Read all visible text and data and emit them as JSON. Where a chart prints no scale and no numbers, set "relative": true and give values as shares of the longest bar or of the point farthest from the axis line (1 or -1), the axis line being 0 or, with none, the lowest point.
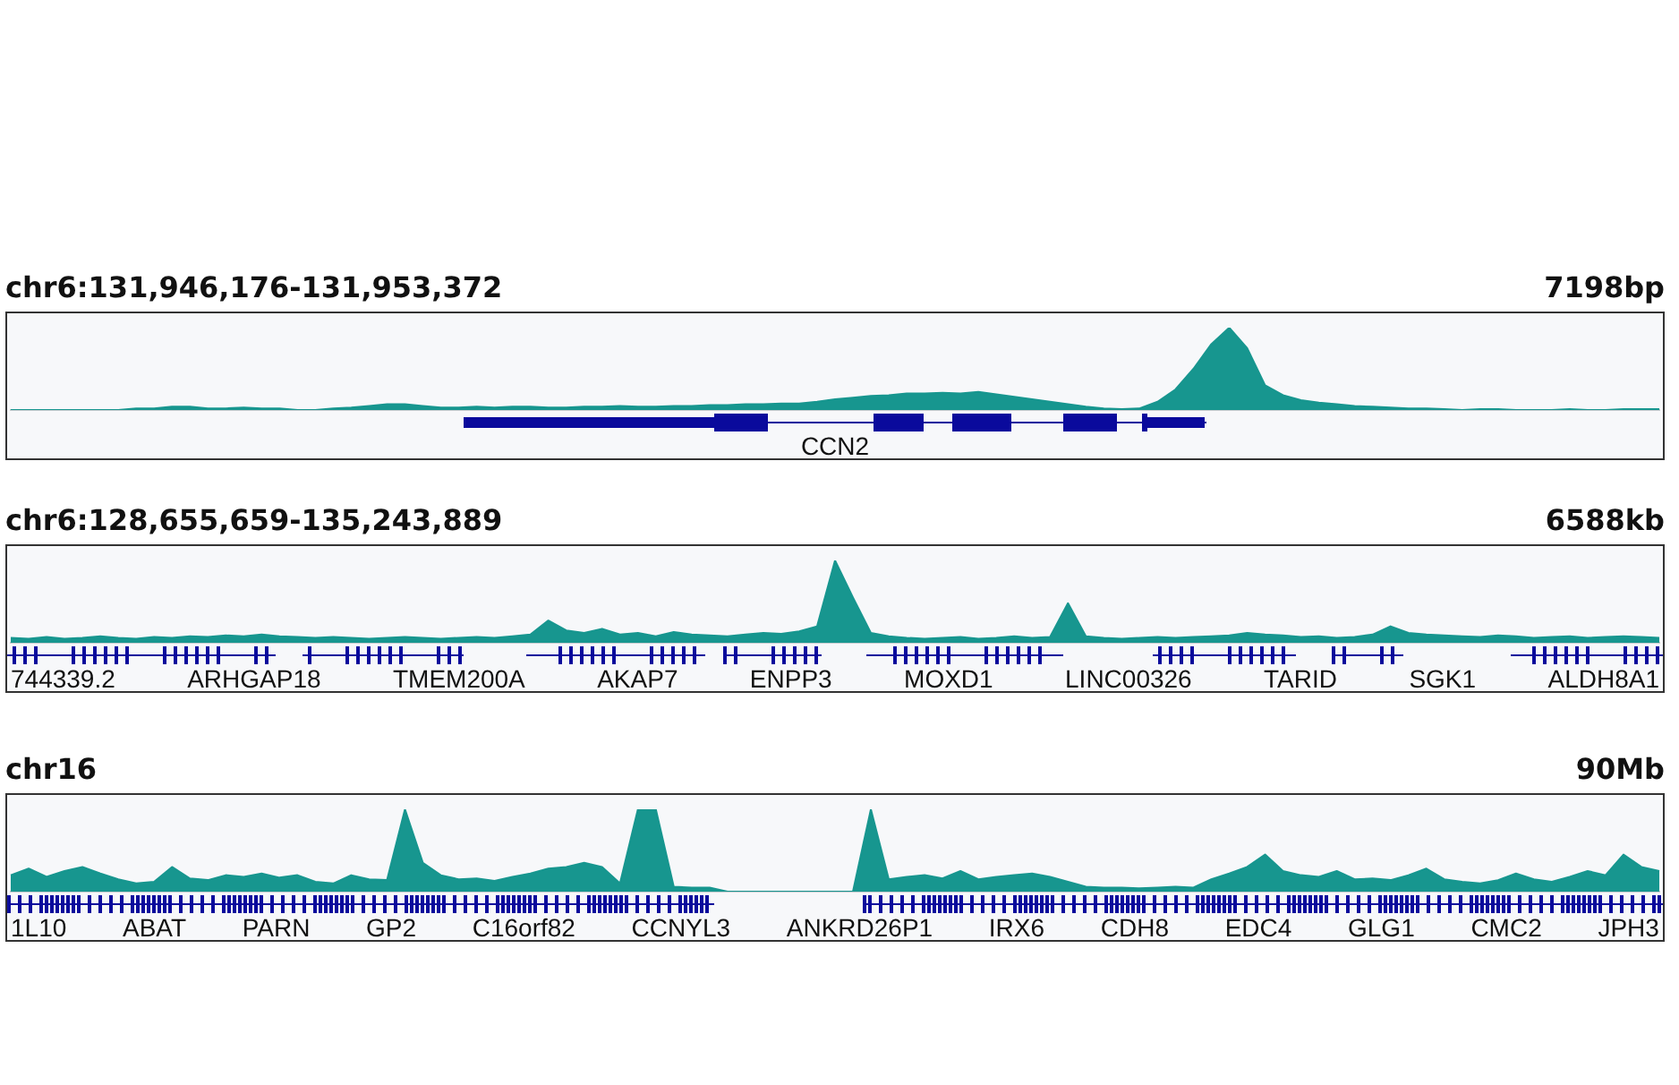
{
  "chart_data": [
    {
      "type": "area",
      "title": "chr6:131,946,176-131,953,372",
      "subtitle": "7198bp",
      "relative": true,
      "categories": [
        null,
        null,
        null,
        null,
        null,
        null,
        null,
        null,
        null,
        null,
        null,
        null,
        null,
        null,
        null,
        null,
        null,
        null,
        null,
        null,
        null,
        null,
        null,
        null,
        null,
        null,
        null,
        null,
        null,
        null,
        null,
        null,
        null,
        null,
        null,
        null,
        null,
        null,
        null,
        null,
        null,
        null,
        null,
        null,
        null,
        null,
        null,
        null,
        null,
        null,
        null,
        null,
        null,
        null,
        null,
        null,
        null,
        null,
        null,
        null,
        null,
        null,
        null,
        null,
        null,
        null,
        null,
        null,
        null,
        null,
        null,
        null,
        null,
        null,
        null,
        null,
        null,
        null,
        null,
        null,
        null,
        null,
        null,
        null,
        null,
        null,
        null,
        null,
        null,
        null,
        null,
        null,
        null
      ],
      "series": [
        {
          "color": "#17968f",
          "values": [
            0,
            0,
            0,
            0,
            0,
            0,
            0,
            0.02,
            0.02,
            0.04,
            0.04,
            0.02,
            0.02,
            0.03,
            0.02,
            0.02,
            0,
            0,
            0.02,
            0.03,
            0.05,
            0.07,
            0.07,
            0.05,
            0.03,
            0.03,
            0.04,
            0.03,
            0.04,
            0.04,
            0.03,
            0.03,
            0.04,
            0.04,
            0.05,
            0.04,
            0.04,
            0.05,
            0.05,
            0.06,
            0.06,
            0.07,
            0.07,
            0.08,
            0.08,
            0.1,
            0.13,
            0.15,
            0.17,
            0.18,
            0.2,
            0.2,
            0.21,
            0.2,
            0.22,
            0.19,
            0.16,
            0.13,
            0.1,
            0.07,
            0.04,
            0.02,
            0.01,
            0.02,
            0.1,
            0.25,
            0.5,
            0.8,
            1,
            0.75,
            0.3,
            0.18,
            0.12,
            0.09,
            0.07,
            0.05,
            0.04,
            0.03,
            0.02,
            0.02,
            0.01,
            0,
            0.01,
            0.01,
            0,
            0,
            0,
            0.01,
            0,
            0,
            0.01,
            0.01,
            0.01
          ]
        }
      ],
      "annotations": [
        "CCN2"
      ]
    },
    {
      "type": "area",
      "title": "chr6:128,655,659-135,243,889",
      "subtitle": "6588kb",
      "relative": true,
      "categories": [
        null,
        null,
        null,
        null,
        null,
        null,
        null,
        null,
        null,
        null,
        null,
        null,
        null,
        null,
        null,
        null,
        null,
        null,
        null,
        null,
        null,
        null,
        null,
        null,
        null,
        null,
        null,
        null,
        null,
        null,
        null,
        null,
        null,
        null,
        null,
        null,
        null,
        null,
        null,
        null,
        null,
        null,
        null,
        null,
        null,
        null,
        null,
        null,
        null,
        null,
        null,
        null,
        null,
        null,
        null,
        null,
        null,
        null,
        null,
        null,
        null,
        null,
        null,
        null,
        null,
        null,
        null,
        null,
        null,
        null,
        null,
        null,
        null,
        null,
        null,
        null,
        null,
        null,
        null,
        null,
        null,
        null,
        null,
        null,
        null,
        null,
        null,
        null,
        null,
        null,
        null,
        null,
        null
      ],
      "series": [
        {
          "color": "#17968f",
          "values": [
            0.06,
            0.05,
            0.07,
            0.05,
            0.06,
            0.08,
            0.06,
            0.05,
            0.07,
            0.06,
            0.08,
            0.07,
            0.09,
            0.08,
            0.1,
            0.08,
            0.07,
            0.06,
            0.07,
            0.06,
            0.05,
            0.06,
            0.07,
            0.06,
            0.05,
            0.06,
            0.07,
            0.06,
            0.08,
            0.1,
            0.27,
            0.15,
            0.12,
            0.17,
            0.1,
            0.12,
            0.08,
            0.13,
            0.1,
            0.09,
            0.08,
            0.1,
            0.12,
            0.11,
            0.14,
            0.2,
            1,
            0.55,
            0.12,
            0.08,
            0.06,
            0.05,
            0.06,
            0.07,
            0.05,
            0.06,
            0.08,
            0.06,
            0.07,
            0.48,
            0.08,
            0.06,
            0.05,
            0.06,
            0.07,
            0.06,
            0.07,
            0.08,
            0.09,
            0.12,
            0.1,
            0.09,
            0.07,
            0.08,
            0.06,
            0.07,
            0.1,
            0.2,
            0.12,
            0.1,
            0.09,
            0.08,
            0.07,
            0.09,
            0.08,
            0.06,
            0.07,
            0.08,
            0.06,
            0.07,
            0.08,
            0.07,
            0.06
          ]
        }
      ],
      "annotations": [
        "744339.2",
        "ARHGAP18",
        "TMEM200A",
        "AKAP7",
        "ENPP3",
        "MOXD1",
        "LINC00326",
        "TARID",
        "SGK1",
        "ALDH8A1"
      ]
    },
    {
      "type": "area",
      "title": "chr16",
      "subtitle": "90Mb",
      "relative": true,
      "categories": [
        null,
        null,
        null,
        null,
        null,
        null,
        null,
        null,
        null,
        null,
        null,
        null,
        null,
        null,
        null,
        null,
        null,
        null,
        null,
        null,
        null,
        null,
        null,
        null,
        null,
        null,
        null,
        null,
        null,
        null,
        null,
        null,
        null,
        null,
        null,
        null,
        null,
        null,
        null,
        null,
        null,
        null,
        null,
        null,
        null,
        null,
        null,
        null,
        null,
        null,
        null,
        null,
        null,
        null,
        null,
        null,
        null,
        null,
        null,
        null,
        null,
        null,
        null,
        null,
        null,
        null,
        null,
        null,
        null,
        null,
        null,
        null,
        null,
        null,
        null,
        null,
        null,
        null,
        null,
        null,
        null,
        null,
        null,
        null,
        null,
        null,
        null,
        null,
        null,
        null,
        null,
        null,
        null
      ],
      "series": [
        {
          "color": "#17968f",
          "values": [
            0.2,
            0.28,
            0.18,
            0.25,
            0.3,
            0.22,
            0.15,
            0.1,
            0.12,
            0.3,
            0.16,
            0.14,
            0.2,
            0.18,
            0.22,
            0.17,
            0.2,
            0.12,
            0.1,
            0.2,
            0.15,
            0.14,
            1,
            0.35,
            0.2,
            0.15,
            0.16,
            0.13,
            0.18,
            0.22,
            0.28,
            0.3,
            0.35,
            0.3,
            0.1,
            1,
            1,
            0.06,
            0.05,
            0.05,
            0,
            0,
            0,
            0,
            0,
            0,
            0,
            0,
            1,
            0.15,
            0.18,
            0.2,
            0.16,
            0.25,
            0.15,
            0.18,
            0.2,
            0.22,
            0.18,
            0.12,
            0.06,
            0.05,
            0.05,
            0.04,
            0.05,
            0.06,
            0.05,
            0.15,
            0.22,
            0.3,
            0.45,
            0.25,
            0.2,
            0.18,
            0.25,
            0.15,
            0.16,
            0.14,
            0.2,
            0.28,
            0.15,
            0.12,
            0.1,
            0.14,
            0.22,
            0.15,
            0.12,
            0.18,
            0.25,
            0.2,
            0.45,
            0.3,
            0.25
          ]
        }
      ],
      "annotations": [
        "1L10",
        "ABAT",
        "PARN",
        "GP2",
        "C16orf82",
        "CCNYL3",
        "ANKRD26P1",
        "IRX6",
        "CDH8",
        "EDC4",
        "GLG1",
        "CMC2",
        "JPH3"
      ]
    }
  ]
}
